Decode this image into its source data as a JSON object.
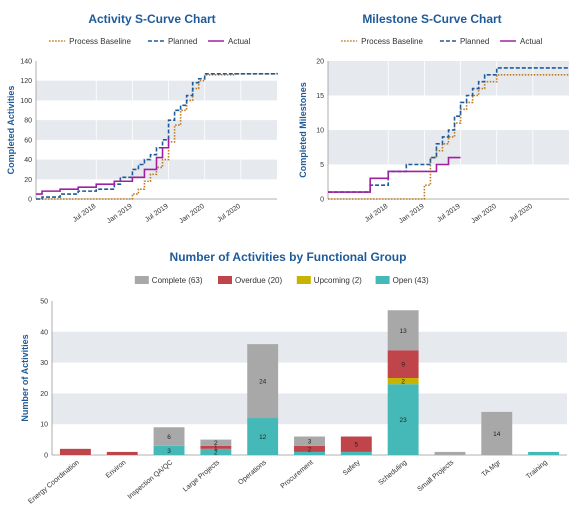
{
  "chart_data": [
    {
      "type": "line",
      "title": "Activity S-Curve Chart",
      "ylabel": "Completed Activities",
      "ylim": [
        0,
        140
      ],
      "yticks": [
        0,
        20,
        40,
        60,
        80,
        100,
        120,
        140
      ],
      "xlim": [
        "2017-09",
        "2021-01"
      ],
      "xticks": [
        "Jul 2018",
        "Jan 2019",
        "Jul 2019",
        "Jan 2020",
        "Jul 2020"
      ],
      "legend": "top",
      "series": [
        {
          "name": "Process Baseline",
          "color": "#c07a1e",
          "dash": "dotted",
          "x": [
            "2017-09",
            "2018-04",
            "2018-11",
            "2019-01",
            "2019-02",
            "2019-03",
            "2019-04",
            "2019-05",
            "2019-06",
            "2019-07",
            "2019-08",
            "2019-09",
            "2019-10",
            "2019-11",
            "2019-12",
            "2020-01",
            "2020-06",
            "2021-01"
          ],
          "y": [
            0,
            0,
            0,
            5,
            10,
            18,
            25,
            32,
            40,
            58,
            75,
            90,
            100,
            112,
            120,
            126,
            127,
            127
          ]
        },
        {
          "name": "Planned",
          "color": "#1f5b99",
          "dash": "dashed",
          "x": [
            "2017-09",
            "2017-10",
            "2018-01",
            "2018-04",
            "2018-07",
            "2018-10",
            "2018-11",
            "2019-01",
            "2019-02",
            "2019-03",
            "2019-04",
            "2019-05",
            "2019-06",
            "2019-07",
            "2019-08",
            "2019-09",
            "2019-10",
            "2019-11",
            "2019-12",
            "2020-01",
            "2021-01"
          ],
          "y": [
            0,
            2,
            5,
            8,
            10,
            15,
            22,
            30,
            35,
            40,
            45,
            52,
            60,
            80,
            90,
            95,
            105,
            118,
            122,
            127,
            128
          ]
        },
        {
          "name": "Actual",
          "color": "#a020a0",
          "dash": "solid",
          "x": [
            "2017-09",
            "2017-10",
            "2018-01",
            "2018-04",
            "2018-07",
            "2018-10",
            "2019-01",
            "2019-03",
            "2019-05",
            "2019-06",
            "2019-07"
          ],
          "y": [
            5,
            8,
            10,
            12,
            15,
            18,
            22,
            30,
            42,
            52,
            62
          ]
        }
      ]
    },
    {
      "type": "line",
      "title": "Milestone S-Curve Chart",
      "ylabel": "Completed Milestones",
      "ylim": [
        0,
        20
      ],
      "yticks": [
        0,
        5,
        10,
        15,
        20
      ],
      "xlim": [
        "2017-09",
        "2021-01"
      ],
      "xticks": [
        "Jul 2018",
        "Jan 2019",
        "Jul 2019",
        "Jan 2020",
        "Jul 2020"
      ],
      "legend": "top",
      "series": [
        {
          "name": "Process Baseline",
          "color": "#c07a1e",
          "dash": "dotted",
          "x": [
            "2017-09",
            "2018-10",
            "2019-01",
            "2019-02",
            "2019-03",
            "2019-04",
            "2019-05",
            "2019-06",
            "2019-07",
            "2019-08",
            "2019-09",
            "2019-10",
            "2019-11",
            "2019-12",
            "2020-01",
            "2021-01"
          ],
          "y": [
            0,
            0,
            2,
            6,
            7,
            8,
            9,
            11,
            13,
            14,
            15,
            16,
            17,
            17,
            18,
            18
          ]
        },
        {
          "name": "Planned",
          "color": "#1f5b99",
          "dash": "dashed",
          "x": [
            "2017-09",
            "2017-10",
            "2018-01",
            "2018-04",
            "2018-07",
            "2018-10",
            "2019-01",
            "2019-02",
            "2019-03",
            "2019-04",
            "2019-05",
            "2019-06",
            "2019-07",
            "2019-08",
            "2019-09",
            "2019-10",
            "2019-11",
            "2020-01",
            "2021-01"
          ],
          "y": [
            1,
            1,
            1,
            2,
            4,
            5,
            5,
            6,
            8,
            9,
            10,
            12,
            14,
            15,
            16,
            17,
            18,
            19,
            19
          ]
        },
        {
          "name": "Actual",
          "color": "#a020a0",
          "dash": "solid",
          "x": [
            "2017-09",
            "2017-12",
            "2018-04",
            "2018-07",
            "2018-11",
            "2019-01",
            "2019-03",
            "2019-05",
            "2019-07"
          ],
          "y": [
            1,
            1,
            3,
            4,
            4,
            4,
            5,
            6,
            6
          ]
        }
      ]
    },
    {
      "type": "bar",
      "stacked": true,
      "title": "Number of Activities by Functional Group",
      "ylabel": "Number of Activities",
      "ylim": [
        0,
        50
      ],
      "yticks": [
        0,
        10,
        20,
        30,
        40,
        50
      ],
      "legend": "top",
      "categories": [
        "Energy Coordination",
        "Environ",
        "Inspection QA/QC",
        "Large Projects",
        "Operations",
        "Procurement",
        "Safety",
        "Scheduling",
        "Small Projects",
        "TA Mgr",
        "Training"
      ],
      "series": [
        {
          "name": "Open (43)",
          "color": "#45b8b8",
          "values": [
            0,
            0,
            3,
            2,
            12,
            1,
            1,
            23,
            0,
            0,
            1
          ]
        },
        {
          "name": "Upcoming (2)",
          "color": "#c8b400",
          "values": [
            0,
            0,
            0,
            0,
            0,
            0,
            0,
            2,
            0,
            0,
            0
          ]
        },
        {
          "name": "Overdue (20)",
          "color": "#c0454a",
          "values": [
            2,
            1,
            0,
            1,
            0,
            2,
            5,
            9,
            0,
            0,
            0
          ]
        },
        {
          "name": "Complete (63)",
          "color": "#a8a8a8",
          "values": [
            0,
            0,
            6,
            2,
            24,
            3,
            0,
            13,
            1,
            14,
            0
          ]
        }
      ],
      "legend_order": [
        "Complete (63)",
        "Overdue (20)",
        "Upcoming (2)",
        "Open (43)"
      ],
      "segment_labels": [
        {
          "cat": 2,
          "series": 3,
          "text": "6"
        },
        {
          "cat": 2,
          "series": 0,
          "text": "3"
        },
        {
          "cat": 3,
          "series": 3,
          "text": "2"
        },
        {
          "cat": 3,
          "series": 2,
          "text": "1"
        },
        {
          "cat": 3,
          "series": 0,
          "text": "2"
        },
        {
          "cat": 4,
          "series": 3,
          "text": "24"
        },
        {
          "cat": 4,
          "series": 0,
          "text": "12"
        },
        {
          "cat": 5,
          "series": 3,
          "text": "3"
        },
        {
          "cat": 5,
          "series": 2,
          "text": "2"
        },
        {
          "cat": 6,
          "series": 2,
          "text": "5"
        },
        {
          "cat": 7,
          "series": 3,
          "text": "13"
        },
        {
          "cat": 7,
          "series": 2,
          "text": "9"
        },
        {
          "cat": 7,
          "series": 1,
          "text": "2"
        },
        {
          "cat": 7,
          "series": 0,
          "text": "23"
        },
        {
          "cat": 9,
          "series": 3,
          "text": "14"
        }
      ]
    }
  ]
}
